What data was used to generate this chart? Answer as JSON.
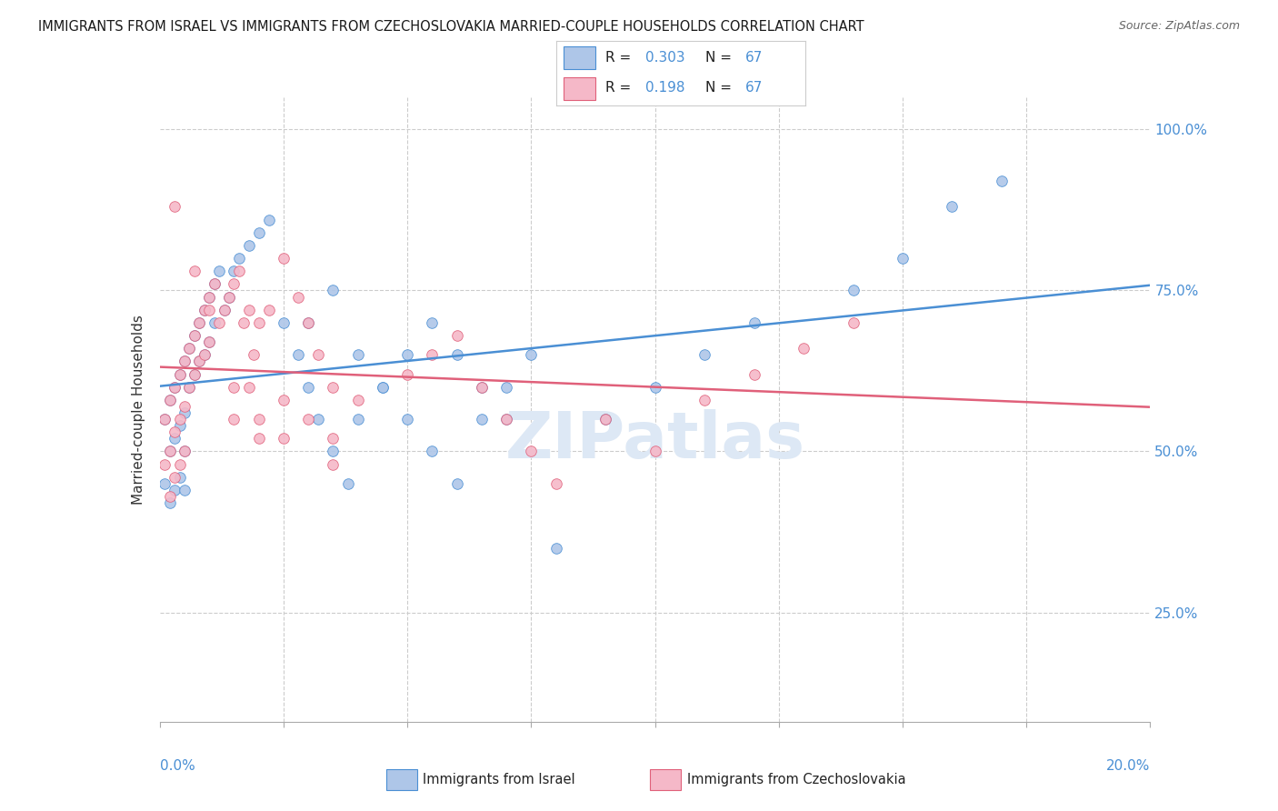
{
  "title": "IMMIGRANTS FROM ISRAEL VS IMMIGRANTS FROM CZECHOSLOVAKIA MARRIED-COUPLE HOUSEHOLDS CORRELATION CHART",
  "source": "Source: ZipAtlas.com",
  "ylabel": "Married-couple Households",
  "xlim": [
    0.0,
    0.2
  ],
  "ylim": [
    0.08,
    1.05
  ],
  "R_israel": 0.303,
  "N_israel": 67,
  "R_czech": 0.198,
  "N_czech": 67,
  "color_israel": "#aec6e8",
  "color_czech": "#f5b8c8",
  "trendline_israel": "#4a8fd4",
  "trendline_czech": "#e0607a",
  "label_color_blue": "#4a8fd4",
  "legend_label_israel": "Immigrants from Israel",
  "legend_label_czech": "Immigrants from Czechoslovakia",
  "background_color": "#ffffff",
  "grid_color": "#cccccc",
  "watermark_color": "#dde8f5",
  "israel_x": [
    0.001,
    0.001,
    0.002,
    0.002,
    0.002,
    0.003,
    0.003,
    0.003,
    0.004,
    0.004,
    0.004,
    0.005,
    0.005,
    0.005,
    0.005,
    0.006,
    0.006,
    0.007,
    0.007,
    0.008,
    0.008,
    0.009,
    0.009,
    0.01,
    0.01,
    0.011,
    0.011,
    0.012,
    0.013,
    0.014,
    0.015,
    0.016,
    0.018,
    0.02,
    0.022,
    0.025,
    0.028,
    0.03,
    0.032,
    0.035,
    0.038,
    0.04,
    0.045,
    0.05,
    0.055,
    0.06,
    0.065,
    0.07,
    0.03,
    0.035,
    0.04,
    0.045,
    0.05,
    0.055,
    0.06,
    0.065,
    0.07,
    0.075,
    0.08,
    0.09,
    0.1,
    0.11,
    0.12,
    0.14,
    0.15,
    0.16,
    0.17
  ],
  "israel_y": [
    0.55,
    0.45,
    0.58,
    0.5,
    0.42,
    0.6,
    0.52,
    0.44,
    0.62,
    0.54,
    0.46,
    0.64,
    0.56,
    0.5,
    0.44,
    0.66,
    0.6,
    0.68,
    0.62,
    0.7,
    0.64,
    0.72,
    0.65,
    0.74,
    0.67,
    0.76,
    0.7,
    0.78,
    0.72,
    0.74,
    0.78,
    0.8,
    0.82,
    0.84,
    0.86,
    0.7,
    0.65,
    0.6,
    0.55,
    0.5,
    0.45,
    0.55,
    0.6,
    0.65,
    0.7,
    0.65,
    0.6,
    0.55,
    0.7,
    0.75,
    0.65,
    0.6,
    0.55,
    0.5,
    0.45,
    0.55,
    0.6,
    0.65,
    0.35,
    0.55,
    0.6,
    0.65,
    0.7,
    0.75,
    0.8,
    0.88,
    0.92
  ],
  "czech_x": [
    0.001,
    0.001,
    0.002,
    0.002,
    0.002,
    0.003,
    0.003,
    0.003,
    0.004,
    0.004,
    0.004,
    0.005,
    0.005,
    0.005,
    0.006,
    0.006,
    0.007,
    0.007,
    0.008,
    0.008,
    0.009,
    0.009,
    0.01,
    0.01,
    0.011,
    0.012,
    0.013,
    0.014,
    0.015,
    0.016,
    0.017,
    0.018,
    0.019,
    0.02,
    0.022,
    0.025,
    0.028,
    0.03,
    0.032,
    0.035,
    0.015,
    0.018,
    0.02,
    0.025,
    0.03,
    0.035,
    0.04,
    0.05,
    0.055,
    0.06,
    0.065,
    0.07,
    0.075,
    0.08,
    0.09,
    0.1,
    0.11,
    0.12,
    0.13,
    0.14,
    0.003,
    0.007,
    0.01,
    0.015,
    0.02,
    0.025,
    0.035
  ],
  "czech_y": [
    0.55,
    0.48,
    0.58,
    0.5,
    0.43,
    0.6,
    0.53,
    0.46,
    0.62,
    0.55,
    0.48,
    0.64,
    0.57,
    0.5,
    0.66,
    0.6,
    0.68,
    0.62,
    0.7,
    0.64,
    0.72,
    0.65,
    0.74,
    0.67,
    0.76,
    0.7,
    0.72,
    0.74,
    0.76,
    0.78,
    0.7,
    0.72,
    0.65,
    0.7,
    0.72,
    0.8,
    0.74,
    0.7,
    0.65,
    0.6,
    0.55,
    0.6,
    0.52,
    0.58,
    0.55,
    0.52,
    0.58,
    0.62,
    0.65,
    0.68,
    0.6,
    0.55,
    0.5,
    0.45,
    0.55,
    0.5,
    0.58,
    0.62,
    0.66,
    0.7,
    0.88,
    0.78,
    0.72,
    0.6,
    0.55,
    0.52,
    0.48
  ]
}
